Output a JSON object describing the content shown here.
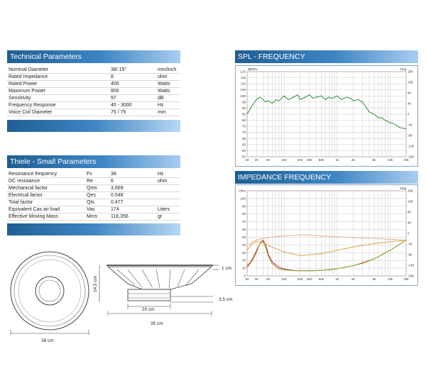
{
  "technical": {
    "title": "Technical Parameters",
    "rows": [
      {
        "name": "Nominal Diameter",
        "value": "38/ 15\"",
        "unit": "mm/inch"
      },
      {
        "name": "Rated Impedance",
        "value": "8",
        "unit": "ohm"
      },
      {
        "name": "Rated Power",
        "value": "400",
        "unit": "Watts"
      },
      {
        "name": "Maximum Power",
        "value": "800",
        "unit": "Watts"
      },
      {
        "name": "Sensitivity",
        "value": "97",
        "unit": "dB"
      },
      {
        "name": "Frequency Response",
        "value": "40 - 3000",
        "unit": "Hz"
      },
      {
        "name": "Voice Coil Diameter",
        "value": "75 / 75",
        "unit": "mm"
      }
    ]
  },
  "thiele": {
    "title": "Thiele - Small Parameters",
    "rows": [
      {
        "name": "Resonance frequency",
        "sym": "Fs",
        "value": "38",
        "unit": "Hz"
      },
      {
        "name": "DC resistance",
        "sym": "Re",
        "value": "6",
        "unit": "ohm"
      },
      {
        "name": "Mechanical factor",
        "sym": "Qms",
        "value": "3.669",
        "unit": ""
      },
      {
        "name": "Electrical factor",
        "sym": "Qes",
        "value": "0.548",
        "unit": ""
      },
      {
        "name": "Total factor",
        "sym": "Qts",
        "value": "0.477",
        "unit": ""
      },
      {
        "name": "Equivalent Cas air load",
        "sym": "Vas",
        "value": "174",
        "unit": "Liters"
      },
      {
        "name": "Effective Moving Mass",
        "sym": "Mms",
        "value": "116,356",
        "unit": "gr"
      }
    ]
  },
  "dimensions": {
    "front_width": "38 cm",
    "depth": "14,5 cm",
    "flange": "1 cm",
    "magnet_height": "3,5 cm",
    "magnet_width": "20 cm",
    "cut_width": "35 cm"
  },
  "chart_data": [
    {
      "type": "line",
      "title": "SPL - FREQUENCY",
      "xscale": "log",
      "xlim": [
        20,
        20000
      ],
      "x_ticks": [
        "20",
        "30",
        "50",
        "100",
        "200",
        "300",
        "500",
        "1k",
        "2k",
        "5k",
        "10k",
        "20k"
      ],
      "y_ticks": [
        "120",
        "115",
        "110",
        "105",
        "100",
        "95",
        "90",
        "85",
        "80",
        "75",
        "70",
        "65",
        "60",
        "55",
        "50"
      ],
      "ylim": [
        50,
        120
      ],
      "corner_left": "dBSPL",
      "corner_right": "Deg",
      "right_ticks": [
        "180",
        "135",
        "90",
        "45",
        "0",
        "-45",
        "-90",
        "-135",
        "-180"
      ],
      "color": "#2e8b3a",
      "x": [
        20,
        25,
        30,
        35,
        40,
        45,
        50,
        60,
        70,
        80,
        100,
        120,
        150,
        180,
        200,
        250,
        300,
        350,
        400,
        500,
        600,
        700,
        800,
        1000,
        1200,
        1500,
        1800,
        2000,
        2500,
        3000,
        3500,
        4000,
        5000,
        6000,
        7000,
        8000,
        10000,
        12000,
        15000,
        20000
      ],
      "y": [
        85,
        92,
        97,
        99,
        97,
        95,
        96,
        94,
        97,
        96,
        100,
        97,
        99,
        101,
        97,
        99,
        101,
        98,
        99,
        100,
        97,
        99,
        98,
        100,
        97,
        99,
        98,
        96,
        97,
        95,
        91,
        87,
        85,
        82,
        82,
        80,
        78,
        77,
        74,
        73
      ]
    },
    {
      "type": "line",
      "title": "IMPEDANCE FREQUENCY",
      "xscale": "log",
      "xlim": [
        20,
        20000
      ],
      "x_ticks": [
        "20",
        "30",
        "50",
        "100",
        "200",
        "300",
        "500",
        "1k",
        "2k",
        "5k",
        "10k",
        "20k"
      ],
      "y_ticks": [
        "Ohm",
        "100",
        "90",
        "80",
        "70",
        "60",
        "50",
        "40",
        "30",
        "20",
        "10",
        "0"
      ],
      "ylim": [
        0,
        100
      ],
      "corner_right": "Deg",
      "right_ticks": [
        "180",
        "135",
        "90",
        "45",
        "0",
        "-45",
        "-90",
        "-135",
        "-180"
      ],
      "series": [
        {
          "color": "#c21a1a",
          "x": [
            20,
            25,
            30,
            35,
            40,
            45,
            50,
            60,
            80,
            100,
            150,
            200,
            300,
            500,
            800,
            1000,
            2000,
            3000,
            5000,
            10000,
            20000
          ],
          "y": [
            10,
            18,
            28,
            38,
            42,
            36,
            26,
            16,
            10,
            8,
            6.5,
            6,
            6,
            6.5,
            7.5,
            8.5,
            12,
            15,
            20,
            30,
            42
          ]
        },
        {
          "color": "#8bb33a",
          "x": [
            20,
            25,
            30,
            35,
            40,
            45,
            50,
            55,
            60,
            70,
            80,
            100,
            150,
            200,
            300,
            500,
            1000,
            2000,
            5000,
            10000,
            20000
          ],
          "y": [
            12,
            20,
            30,
            38,
            40,
            33,
            24,
            18,
            14,
            10,
            8,
            7,
            6.2,
            6,
            6,
            6.5,
            8.5,
            12,
            20,
            30,
            42
          ]
        },
        {
          "color": "#e0a24a",
          "x": [
            20,
            25,
            30,
            35,
            40,
            50,
            70,
            100,
            200,
            500,
            1000,
            2000,
            5000,
            10000,
            20000
          ],
          "y": [
            30,
            38,
            40,
            40,
            39,
            36,
            32,
            28,
            24,
            26,
            30,
            34,
            38,
            40,
            42
          ]
        },
        {
          "color": "#e6b28a",
          "x": [
            20,
            25,
            30,
            40,
            50,
            70,
            100,
            200,
            300,
            500,
            1000,
            2000,
            5000,
            10000,
            20000
          ],
          "y": [
            35,
            40,
            42,
            44,
            45,
            46,
            47,
            48,
            48,
            47,
            46,
            45,
            44,
            43,
            42
          ]
        }
      ]
    }
  ]
}
